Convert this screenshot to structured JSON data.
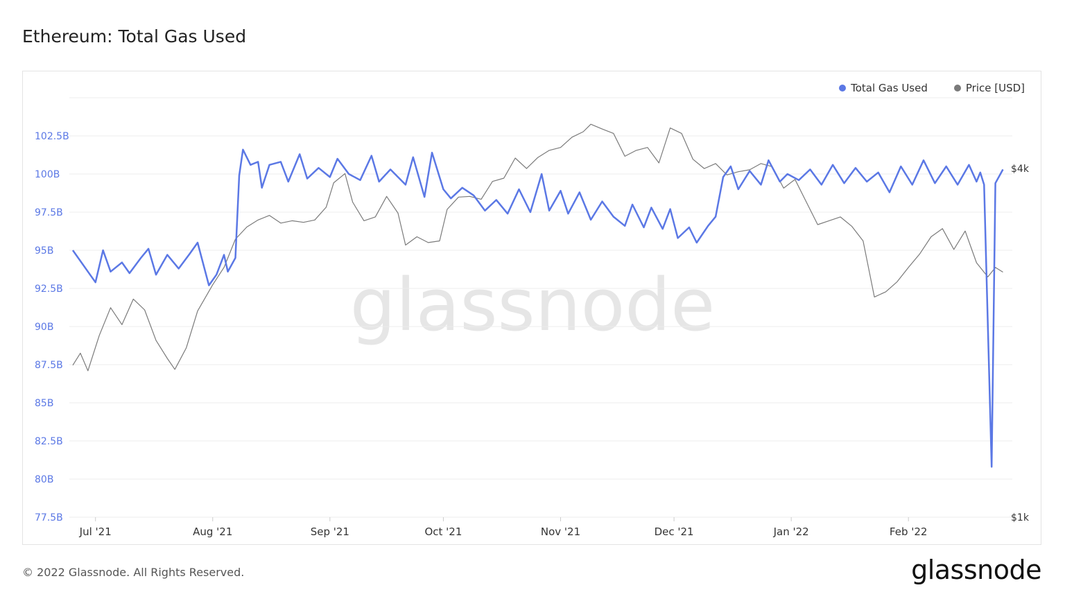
{
  "page": {
    "title": "Ethereum: Total Gas Used",
    "footer": "© 2022 Glassnode. All Rights Reserved.",
    "brand": "glassnode",
    "watermark": "glassnode"
  },
  "legend": [
    {
      "label": "Total Gas Used",
      "color": "#5b78e5"
    },
    {
      "label": "Price [USD]",
      "color": "#7a7a7a"
    }
  ],
  "chart_data": {
    "type": "line",
    "title": "Ethereum: Total Gas Used",
    "grid": true,
    "legend_position": "top-right",
    "x_range": [
      "2021-06-25",
      "2022-02-27"
    ],
    "x_ticks": [
      {
        "date": "2021-07-01",
        "label": "Jul '21"
      },
      {
        "date": "2021-08-01",
        "label": "Aug '21"
      },
      {
        "date": "2021-09-01",
        "label": "Sep '21"
      },
      {
        "date": "2021-10-01",
        "label": "Oct '21"
      },
      {
        "date": "2021-11-01",
        "label": "Nov '21"
      },
      {
        "date": "2021-12-01",
        "label": "Dec '21"
      },
      {
        "date": "2022-01-01",
        "label": "Jan '22"
      },
      {
        "date": "2022-02-01",
        "label": "Feb '22"
      }
    ],
    "y_left": {
      "unit": "B",
      "ylim": [
        77.5,
        105
      ],
      "ticks": [
        "77.5B",
        "80B",
        "82.5B",
        "85B",
        "87.5B",
        "90B",
        "92.5B",
        "95B",
        "97.5B",
        "100B",
        "102.5B"
      ],
      "tick_values": [
        77.5,
        80,
        82.5,
        85,
        87.5,
        90,
        92.5,
        95,
        97.5,
        100,
        102.5
      ]
    },
    "y_right": {
      "scale": "log",
      "ylim": [
        1000,
        5300
      ],
      "ticks": [
        {
          "value": 1000,
          "label": "$1k"
        },
        {
          "value": 4000,
          "label": "$4k"
        }
      ]
    },
    "series": [
      {
        "name": "Total Gas Used",
        "axis": "left",
        "color": "#5b78e5",
        "start_date": "2021-06-25",
        "points": [
          [
            "2021-06-25",
            95.0
          ],
          [
            "2021-06-29",
            93.6
          ],
          [
            "2021-07-01",
            92.9
          ],
          [
            "2021-07-03",
            95.0
          ],
          [
            "2021-07-05",
            93.6
          ],
          [
            "2021-07-08",
            94.2
          ],
          [
            "2021-07-10",
            93.5
          ],
          [
            "2021-07-13",
            94.5
          ],
          [
            "2021-07-15",
            95.1
          ],
          [
            "2021-07-17",
            93.4
          ],
          [
            "2021-07-20",
            94.7
          ],
          [
            "2021-07-23",
            93.8
          ],
          [
            "2021-07-26",
            94.8
          ],
          [
            "2021-07-28",
            95.5
          ],
          [
            "2021-07-31",
            92.7
          ],
          [
            "2021-08-02",
            93.4
          ],
          [
            "2021-08-04",
            94.7
          ],
          [
            "2021-08-05",
            93.6
          ],
          [
            "2021-08-07",
            94.5
          ],
          [
            "2021-08-08",
            99.9
          ],
          [
            "2021-08-09",
            101.6
          ],
          [
            "2021-08-11",
            100.6
          ],
          [
            "2021-08-13",
            100.8
          ],
          [
            "2021-08-14",
            99.1
          ],
          [
            "2021-08-16",
            100.6
          ],
          [
            "2021-08-19",
            100.8
          ],
          [
            "2021-08-21",
            99.5
          ],
          [
            "2021-08-24",
            101.3
          ],
          [
            "2021-08-26",
            99.7
          ],
          [
            "2021-08-29",
            100.4
          ],
          [
            "2021-09-01",
            99.8
          ],
          [
            "2021-09-03",
            101.0
          ],
          [
            "2021-09-06",
            100.0
          ],
          [
            "2021-09-09",
            99.6
          ],
          [
            "2021-09-12",
            101.2
          ],
          [
            "2021-09-14",
            99.5
          ],
          [
            "2021-09-17",
            100.3
          ],
          [
            "2021-09-21",
            99.3
          ],
          [
            "2021-09-23",
            101.1
          ],
          [
            "2021-09-26",
            98.5
          ],
          [
            "2021-09-28",
            101.4
          ],
          [
            "2021-10-01",
            99.0
          ],
          [
            "2021-10-03",
            98.4
          ],
          [
            "2021-10-06",
            99.1
          ],
          [
            "2021-10-09",
            98.6
          ],
          [
            "2021-10-12",
            97.6
          ],
          [
            "2021-10-15",
            98.3
          ],
          [
            "2021-10-18",
            97.4
          ],
          [
            "2021-10-21",
            99.0
          ],
          [
            "2021-10-24",
            97.5
          ],
          [
            "2021-10-27",
            100.0
          ],
          [
            "2021-10-29",
            97.6
          ],
          [
            "2021-11-01",
            98.9
          ],
          [
            "2021-11-03",
            97.4
          ],
          [
            "2021-11-06",
            98.8
          ],
          [
            "2021-11-09",
            97.0
          ],
          [
            "2021-11-12",
            98.2
          ],
          [
            "2021-11-15",
            97.2
          ],
          [
            "2021-11-18",
            96.6
          ],
          [
            "2021-11-20",
            98.0
          ],
          [
            "2021-11-23",
            96.5
          ],
          [
            "2021-11-25",
            97.8
          ],
          [
            "2021-11-28",
            96.4
          ],
          [
            "2021-11-30",
            97.7
          ],
          [
            "2021-12-02",
            95.8
          ],
          [
            "2021-12-05",
            96.5
          ],
          [
            "2021-12-07",
            95.5
          ],
          [
            "2021-12-10",
            96.6
          ],
          [
            "2021-12-12",
            97.2
          ],
          [
            "2021-12-14",
            99.8
          ],
          [
            "2021-12-16",
            100.5
          ],
          [
            "2021-12-18",
            99.0
          ],
          [
            "2021-12-21",
            100.2
          ],
          [
            "2021-12-24",
            99.3
          ],
          [
            "2021-12-26",
            100.9
          ],
          [
            "2021-12-29",
            99.5
          ],
          [
            "2021-12-31",
            100.0
          ],
          [
            "2022-01-03",
            99.6
          ],
          [
            "2022-01-06",
            100.3
          ],
          [
            "2022-01-09",
            99.3
          ],
          [
            "2022-01-12",
            100.6
          ],
          [
            "2022-01-15",
            99.4
          ],
          [
            "2022-01-18",
            100.4
          ],
          [
            "2022-01-21",
            99.5
          ],
          [
            "2022-01-24",
            100.1
          ],
          [
            "2022-01-27",
            98.8
          ],
          [
            "2022-01-30",
            100.5
          ],
          [
            "2022-02-02",
            99.3
          ],
          [
            "2022-02-05",
            100.9
          ],
          [
            "2022-02-08",
            99.4
          ],
          [
            "2022-02-11",
            100.5
          ],
          [
            "2022-02-14",
            99.3
          ],
          [
            "2022-02-17",
            100.6
          ],
          [
            "2022-02-19",
            99.5
          ],
          [
            "2022-02-20",
            100.1
          ],
          [
            "2022-02-21",
            99.3
          ],
          [
            "2022-02-23",
            80.8
          ],
          [
            "2022-02-24",
            99.4
          ],
          [
            "2022-02-26",
            100.3
          ]
        ]
      },
      {
        "name": "Price [USD]",
        "axis": "right",
        "color": "#7a7a7a",
        "points": [
          [
            "2021-06-25",
            1830
          ],
          [
            "2021-06-27",
            1920
          ],
          [
            "2021-06-29",
            1790
          ],
          [
            "2021-07-02",
            2060
          ],
          [
            "2021-07-05",
            2300
          ],
          [
            "2021-07-08",
            2150
          ],
          [
            "2021-07-11",
            2380
          ],
          [
            "2021-07-14",
            2280
          ],
          [
            "2021-07-17",
            2020
          ],
          [
            "2021-07-20",
            1880
          ],
          [
            "2021-07-22",
            1800
          ],
          [
            "2021-07-25",
            1960
          ],
          [
            "2021-07-28",
            2270
          ],
          [
            "2021-08-01",
            2520
          ],
          [
            "2021-08-04",
            2700
          ],
          [
            "2021-08-07",
            3020
          ],
          [
            "2021-08-10",
            3170
          ],
          [
            "2021-08-13",
            3260
          ],
          [
            "2021-08-16",
            3320
          ],
          [
            "2021-08-19",
            3220
          ],
          [
            "2021-08-22",
            3250
          ],
          [
            "2021-08-25",
            3230
          ],
          [
            "2021-08-28",
            3260
          ],
          [
            "2021-08-31",
            3430
          ],
          [
            "2021-09-02",
            3780
          ],
          [
            "2021-09-05",
            3920
          ],
          [
            "2021-09-07",
            3500
          ],
          [
            "2021-09-10",
            3250
          ],
          [
            "2021-09-13",
            3300
          ],
          [
            "2021-09-16",
            3580
          ],
          [
            "2021-09-19",
            3350
          ],
          [
            "2021-09-21",
            2950
          ],
          [
            "2021-09-24",
            3050
          ],
          [
            "2021-09-27",
            2980
          ],
          [
            "2021-09-30",
            3000
          ],
          [
            "2021-10-02",
            3400
          ],
          [
            "2021-10-05",
            3570
          ],
          [
            "2021-10-08",
            3580
          ],
          [
            "2021-10-11",
            3540
          ],
          [
            "2021-10-14",
            3800
          ],
          [
            "2021-10-17",
            3850
          ],
          [
            "2021-10-20",
            4170
          ],
          [
            "2021-10-23",
            4000
          ],
          [
            "2021-10-26",
            4180
          ],
          [
            "2021-10-29",
            4300
          ],
          [
            "2021-11-01",
            4350
          ],
          [
            "2021-11-04",
            4530
          ],
          [
            "2021-11-07",
            4630
          ],
          [
            "2021-11-09",
            4770
          ],
          [
            "2021-11-12",
            4680
          ],
          [
            "2021-11-15",
            4600
          ],
          [
            "2021-11-18",
            4200
          ],
          [
            "2021-11-21",
            4300
          ],
          [
            "2021-11-24",
            4350
          ],
          [
            "2021-11-27",
            4090
          ],
          [
            "2021-11-30",
            4700
          ],
          [
            "2021-12-03",
            4600
          ],
          [
            "2021-12-06",
            4150
          ],
          [
            "2021-12-09",
            4000
          ],
          [
            "2021-12-12",
            4080
          ],
          [
            "2021-12-15",
            3900
          ],
          [
            "2021-12-18",
            3950
          ],
          [
            "2021-12-21",
            3980
          ],
          [
            "2021-12-24",
            4080
          ],
          [
            "2021-12-27",
            4030
          ],
          [
            "2021-12-30",
            3700
          ],
          [
            "2022-01-02",
            3830
          ],
          [
            "2022-01-05",
            3500
          ],
          [
            "2022-01-08",
            3200
          ],
          [
            "2022-01-11",
            3250
          ],
          [
            "2022-01-14",
            3300
          ],
          [
            "2022-01-17",
            3180
          ],
          [
            "2022-01-20",
            3000
          ],
          [
            "2022-01-23",
            2400
          ],
          [
            "2022-01-26",
            2450
          ],
          [
            "2022-01-29",
            2550
          ],
          [
            "2022-02-01",
            2700
          ],
          [
            "2022-02-04",
            2850
          ],
          [
            "2022-02-07",
            3050
          ],
          [
            "2022-02-10",
            3150
          ],
          [
            "2022-02-13",
            2900
          ],
          [
            "2022-02-16",
            3120
          ],
          [
            "2022-02-19",
            2750
          ],
          [
            "2022-02-22",
            2600
          ],
          [
            "2022-02-24",
            2700
          ],
          [
            "2022-02-26",
            2650
          ]
        ]
      }
    ]
  }
}
